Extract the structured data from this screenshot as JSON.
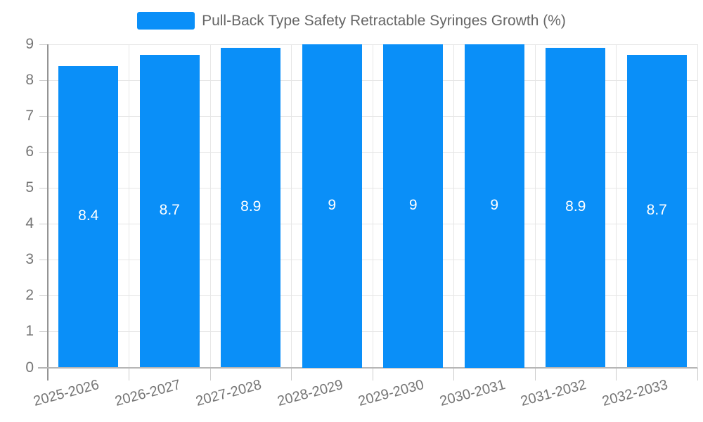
{
  "colors": {
    "bar": "#0a8ff8",
    "grid": "#e6e6e6",
    "axis_line": "#949494",
    "baseline": "#b6b6b6",
    "tick": "#cccccc",
    "label_text": "#757575",
    "title_text": "#666666",
    "bar_label": "#ffffff",
    "background": "#ffffff"
  },
  "chart_data": {
    "type": "bar",
    "title": "Pull-Back Type Safety Retractable Syringes Growth (%)",
    "categories": [
      "2025-2026",
      "2026-2027",
      "2027-2028",
      "2028-2029",
      "2029-2030",
      "2030-2031",
      "2031-2032",
      "2032-2033"
    ],
    "values": [
      8.4,
      8.7,
      8.9,
      9,
      9,
      9,
      8.9,
      8.7
    ],
    "bar_labels": [
      "8.4",
      "8.7",
      "8.9",
      "9",
      "9",
      "9",
      "8.9",
      "8.7"
    ],
    "xlabel": "",
    "ylabel": "",
    "ylim": [
      0,
      9
    ],
    "yticks": [
      0,
      1,
      2,
      3,
      4,
      5,
      6,
      7,
      8,
      9
    ],
    "grid": true,
    "legend_position": "top-center"
  }
}
